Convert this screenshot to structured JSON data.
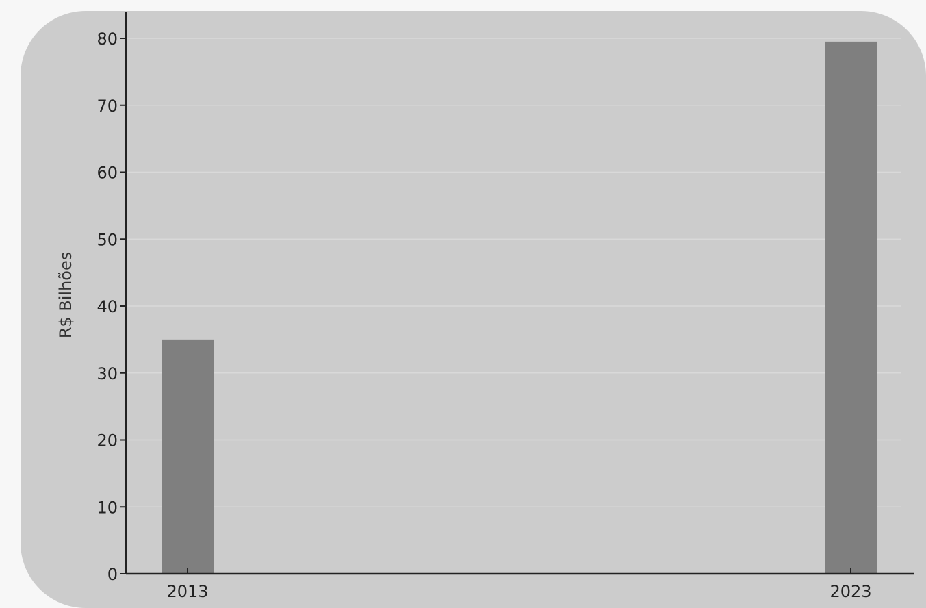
{
  "chart_data": {
    "type": "bar",
    "categories": [
      "2013",
      "2023"
    ],
    "values": [
      35,
      79.5
    ],
    "title": "",
    "xlabel": "",
    "ylabel": "R$ Bilhões",
    "ylim": [
      0,
      80
    ],
    "yticks": [
      0,
      10,
      20,
      30,
      40,
      50,
      60,
      70,
      80
    ],
    "grid": true,
    "legend": "none"
  },
  "colors": {
    "page_background": "#f7f7f7",
    "plot_background": "#cccccc",
    "bar": "#7f7f7f",
    "axis": "#222222",
    "grid": "#d9d9d9"
  }
}
